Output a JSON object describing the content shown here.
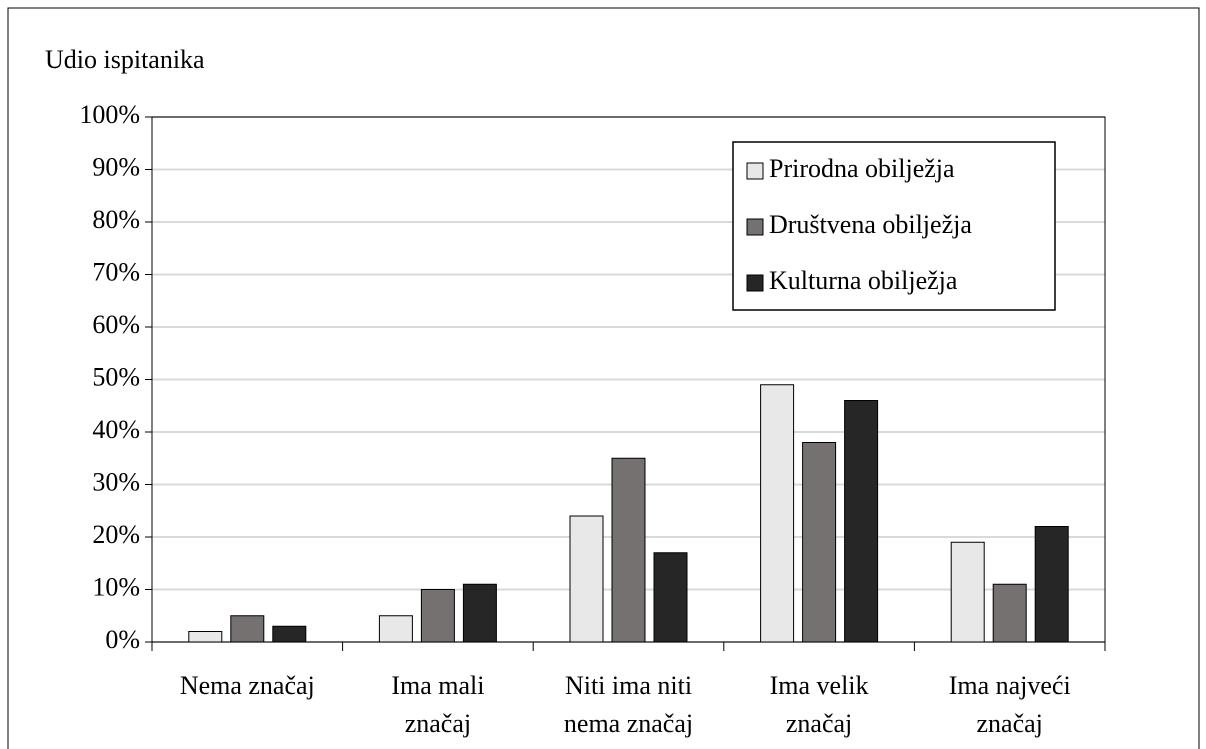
{
  "chart_data": {
    "type": "bar",
    "y_label": "Udio ispitanika",
    "categories": [
      [
        "Nema značaj"
      ],
      [
        "Ima mali",
        "značaj"
      ],
      [
        "Niti ima niti",
        "nema značaj"
      ],
      [
        "Ima velik",
        "značaj"
      ],
      [
        "Ima najveći",
        "značaj"
      ]
    ],
    "series": [
      {
        "name": "Prirodna obilježja",
        "color": "#e8e8e8",
        "values": [
          2,
          5,
          24,
          49,
          19
        ]
      },
      {
        "name": "Društvena obilježja",
        "color": "#767171",
        "values": [
          5,
          10,
          35,
          38,
          11
        ]
      },
      {
        "name": "Kulturna obilježja",
        "color": "#262626",
        "values": [
          3,
          11,
          17,
          46,
          22
        ]
      }
    ],
    "ylim": [
      0,
      100
    ],
    "yticks": [
      {
        "value": 0,
        "label": "0%"
      },
      {
        "value": 10,
        "label": "10%"
      },
      {
        "value": 20,
        "label": "20%"
      },
      {
        "value": 30,
        "label": "30%"
      },
      {
        "value": 40,
        "label": "40%"
      },
      {
        "value": 50,
        "label": "50%"
      },
      {
        "value": 60,
        "label": "60%"
      },
      {
        "value": 70,
        "label": "70%"
      },
      {
        "value": 80,
        "label": "80%"
      },
      {
        "value": 90,
        "label": "90%"
      },
      {
        "value": 100,
        "label": "100%"
      }
    ],
    "grid": true,
    "legend": "upper right"
  }
}
